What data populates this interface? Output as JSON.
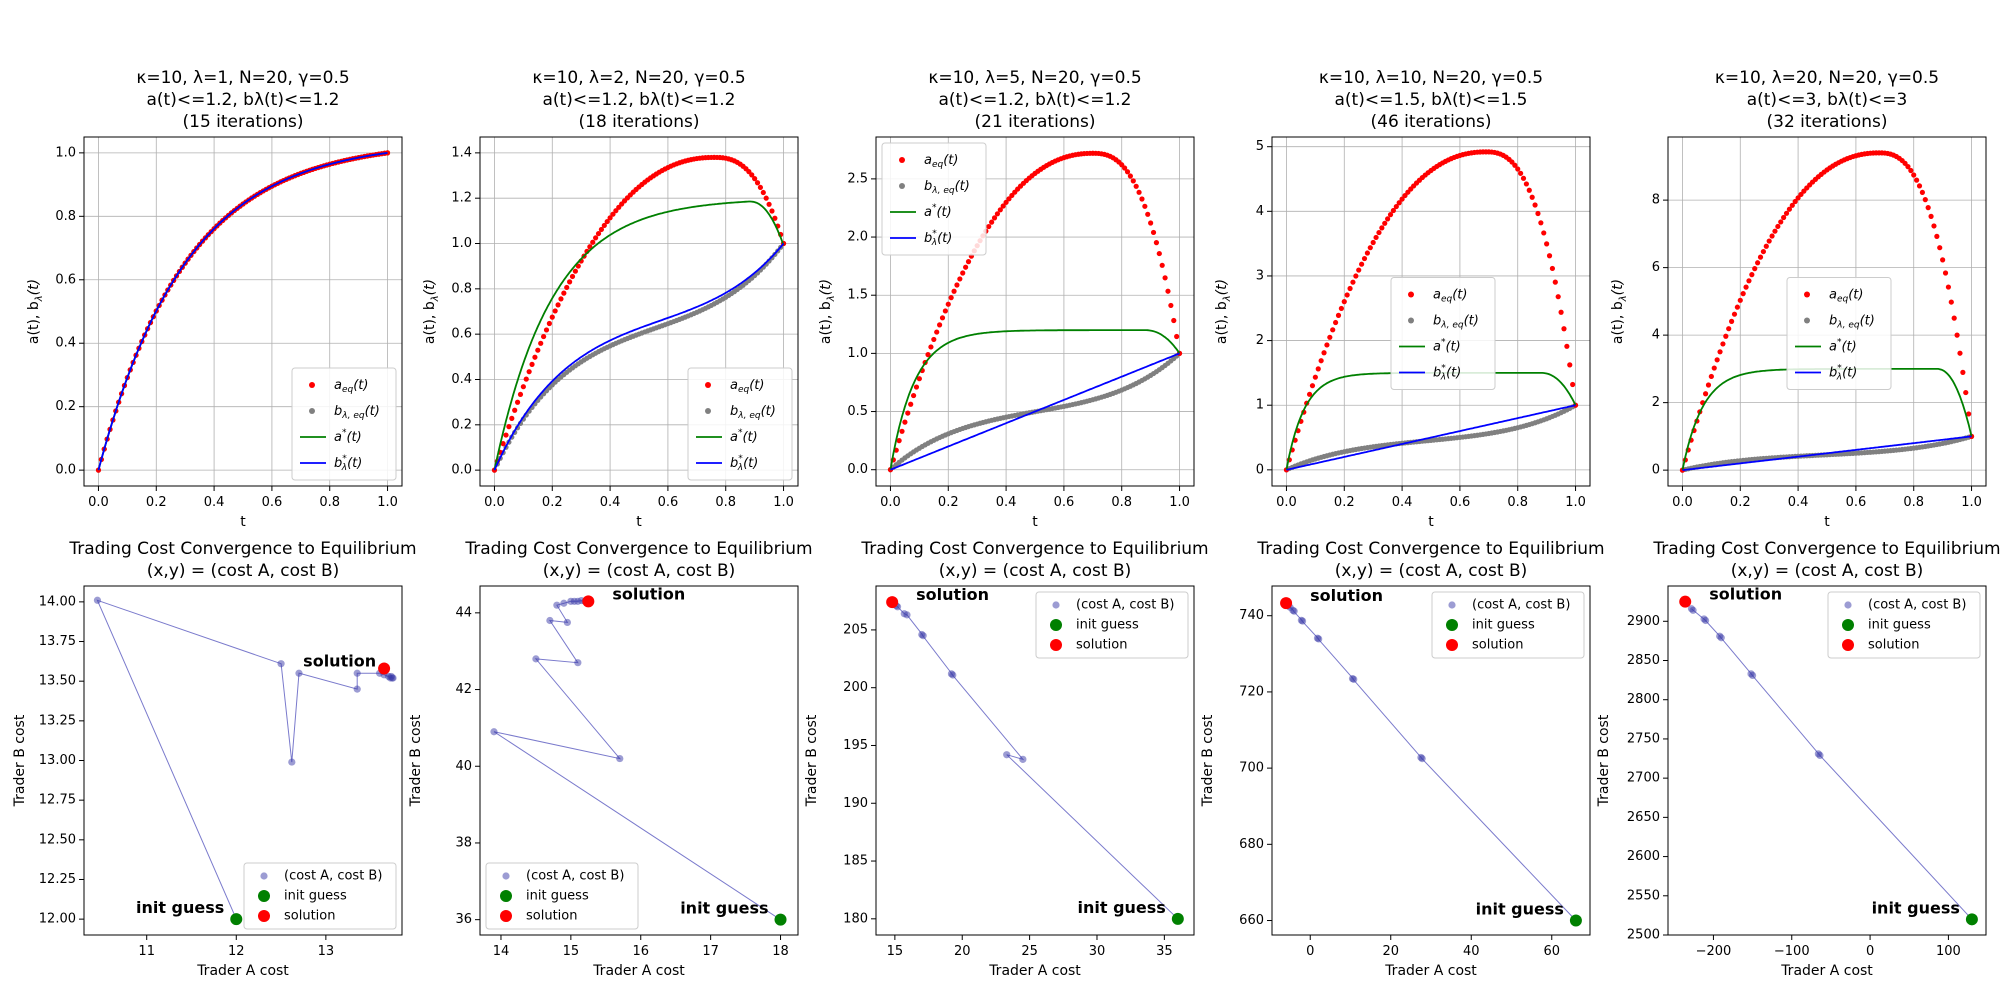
{
  "figure": {
    "width": 2000,
    "height": 1000
  },
  "colors": {
    "a_eq": "#ff0000",
    "b_eq": "#808080",
    "a_star": "#008000",
    "b_star": "#0000ff",
    "path": "#7a7acc",
    "init": "#008000",
    "solution": "#ff0000"
  },
  "chart_data": [
    {
      "type": "scatter",
      "panel": "top-1",
      "title": [
        "κ=10, λ=1, N=20, γ=0.5",
        "a(t)<=1.2, bλ(t)<=1.2",
        "(15 iterations)"
      ],
      "xlabel": "t",
      "ylabel": "a(t), bλ(t)",
      "xlim": [
        -0.05,
        1.05
      ],
      "ylim": [
        -0.05,
        1.05
      ],
      "xticks": [
        0,
        0.2,
        0.4,
        0.6,
        0.8,
        1.0
      ],
      "xtick_labels": [
        "0.0",
        "0.2",
        "0.4",
        "0.6",
        "0.8",
        "1.0"
      ],
      "yticks": [
        0,
        0.2,
        0.4,
        0.6,
        0.8,
        1.0
      ],
      "ytick_labels": [
        "0.0",
        "0.2",
        "0.4",
        "0.6",
        "0.8",
        "1.0"
      ],
      "grid": true,
      "legend_position": "lower-right",
      "legend": [
        "aeq(t)",
        "bλ,eq(t)",
        "a*(t)",
        "bλ*(t)"
      ],
      "curves": {
        "a_eq": {
          "shape": "exp",
          "k": 3.3
        },
        "b_eq": {
          "shape": "exp",
          "k": 3.3
        },
        "a_star": {
          "shape": "exp",
          "k": 3.3
        },
        "b_star": {
          "shape": "exp",
          "k": 3.3
        }
      }
    },
    {
      "type": "scatter",
      "panel": "top-2",
      "title": [
        "κ=10, λ=2, N=20, γ=0.5",
        "a(t)<=1.2, bλ(t)<=1.2",
        "(18 iterations)"
      ],
      "xlabel": "t",
      "ylabel": "a(t), bλ(t)",
      "xlim": [
        -0.05,
        1.05
      ],
      "ylim": [
        -0.07,
        1.47
      ],
      "xticks": [
        0,
        0.2,
        0.4,
        0.6,
        0.8,
        1.0
      ],
      "xtick_labels": [
        "0.0",
        "0.2",
        "0.4",
        "0.6",
        "0.8",
        "1.0"
      ],
      "yticks": [
        0,
        0.2,
        0.4,
        0.6,
        0.8,
        1.0,
        1.2,
        1.4
      ],
      "ytick_labels": [
        "0.0",
        "0.2",
        "0.4",
        "0.6",
        "0.8",
        "1.0",
        "1.2",
        "1.4"
      ],
      "grid": true,
      "legend_position": "lower-right",
      "legend": [
        "aeq(t)",
        "bλ,eq(t)",
        "a*(t)",
        "bλ*(t)"
      ],
      "curves": {
        "a_eq": {
          "shape": "hump",
          "peak": 1.38,
          "tpeak": 0.76
        },
        "b_eq": {
          "shape": "sshape",
          "mid": 0.67
        },
        "a_star": {
          "shape": "capped",
          "cap": 1.2,
          "k": 5.0
        },
        "b_star": {
          "shape": "sshape",
          "mid": 0.7
        }
      }
    },
    {
      "type": "scatter",
      "panel": "top-3",
      "title": [
        "κ=10, λ=5, N=20, γ=0.5",
        "a(t)<=1.2, bλ(t)<=1.2",
        "(21 iterations)"
      ],
      "xlabel": "t",
      "ylabel": "a(t), bλ(t)",
      "xlim": [
        -0.05,
        1.05
      ],
      "ylim": [
        -0.14,
        2.86
      ],
      "xticks": [
        0,
        0.2,
        0.4,
        0.6,
        0.8,
        1.0
      ],
      "xtick_labels": [
        "0.0",
        "0.2",
        "0.4",
        "0.6",
        "0.8",
        "1.0"
      ],
      "yticks": [
        0,
        0.5,
        1.0,
        1.5,
        2.0,
        2.5
      ],
      "ytick_labels": [
        "0.0",
        "0.5",
        "1.0",
        "1.5",
        "2.0",
        "2.5"
      ],
      "grid": true,
      "legend_position": "upper-left",
      "legend": [
        "aeq(t)",
        "bλ,eq(t)",
        "a*(t)",
        "bλ*(t)"
      ],
      "curves": {
        "a_eq": {
          "shape": "hump",
          "peak": 2.72,
          "tpeak": 0.7
        },
        "b_eq": {
          "shape": "sshape",
          "mid": 0.55
        },
        "a_star": {
          "shape": "capped",
          "cap": 1.2,
          "k": 12.0
        },
        "b_star": {
          "shape": "linear"
        }
      }
    },
    {
      "type": "scatter",
      "panel": "top-4",
      "title": [
        "κ=10, λ=10, N=20, γ=0.5",
        "a(t)<=1.5, bλ(t)<=1.5",
        "(46 iterations)"
      ],
      "xlabel": "t",
      "ylabel": "a(t), bλ(t)",
      "xlim": [
        -0.05,
        1.05
      ],
      "ylim": [
        -0.25,
        5.15
      ],
      "xticks": [
        0,
        0.2,
        0.4,
        0.6,
        0.8,
        1.0
      ],
      "xtick_labels": [
        "0.0",
        "0.2",
        "0.4",
        "0.6",
        "0.8",
        "1.0"
      ],
      "yticks": [
        0,
        1,
        2,
        3,
        4,
        5
      ],
      "ytick_labels": [
        "0",
        "1",
        "2",
        "3",
        "4",
        "5"
      ],
      "grid": true,
      "legend_position": "center",
      "legend": [
        "aeq(t)",
        "bλ,eq(t)",
        "a*(t)",
        "bλ*(t)"
      ],
      "curves": {
        "a_eq": {
          "shape": "hump",
          "peak": 4.92,
          "tpeak": 0.69
        },
        "b_eq": {
          "shape": "sshape",
          "mid": 0.5
        },
        "a_star": {
          "shape": "capped",
          "cap": 1.5,
          "k": 16.0
        },
        "b_star": {
          "shape": "linear"
        }
      }
    },
    {
      "type": "scatter",
      "panel": "top-5",
      "title": [
        "κ=10, λ=20, N=20, γ=0.5",
        "a(t)<=3, bλ(t)<=3",
        "(32 iterations)"
      ],
      "xlabel": "t",
      "ylabel": "a(t), bλ(t)",
      "xlim": [
        -0.05,
        1.05
      ],
      "ylim": [
        -0.47,
        9.87
      ],
      "xticks": [
        0,
        0.2,
        0.4,
        0.6,
        0.8,
        1.0
      ],
      "xtick_labels": [
        "0.0",
        "0.2",
        "0.4",
        "0.6",
        "0.8",
        "1.0"
      ],
      "yticks": [
        0,
        2,
        4,
        6,
        8
      ],
      "ytick_labels": [
        "0",
        "2",
        "4",
        "6",
        "8"
      ],
      "grid": true,
      "legend_position": "center",
      "legend": [
        "aeq(t)",
        "bλ,eq(t)",
        "a*(t)",
        "bλ*(t)"
      ],
      "curves": {
        "a_eq": {
          "shape": "hump",
          "peak": 9.4,
          "tpeak": 0.68
        },
        "b_eq": {
          "shape": "sshape",
          "mid": 0.5
        },
        "a_star": {
          "shape": "capped",
          "cap": 3.0,
          "k": 14.0
        },
        "b_star": {
          "shape": "linear"
        }
      }
    },
    {
      "type": "line",
      "panel": "bottom-1",
      "title": [
        "Trading Cost Convergence to Equilibrium",
        "(x,y) = (cost A, cost B)"
      ],
      "xlabel": "Trader A cost",
      "ylabel": "Trader B cost",
      "xlim": [
        10.3,
        13.85
      ],
      "ylim": [
        11.9,
        14.1
      ],
      "xticks": [
        11,
        12,
        13
      ],
      "xtick_labels": [
        "11",
        "12",
        "13"
      ],
      "yticks": [
        12.0,
        12.25,
        12.5,
        12.75,
        13.0,
        13.25,
        13.5,
        13.75,
        14.0
      ],
      "ytick_labels": [
        "12.00",
        "12.25",
        "12.50",
        "12.75",
        "13.00",
        "13.25",
        "13.50",
        "13.75",
        "14.00"
      ],
      "legend_position": "lower-right",
      "legend": [
        "(cost A, cost B)",
        "init guess",
        "solution"
      ],
      "annotations": {
        "init": "init guess",
        "solution": "solution"
      },
      "points": [
        [
          12.0,
          12.0
        ],
        [
          10.45,
          14.01
        ],
        [
          12.5,
          13.61
        ],
        [
          12.62,
          12.99
        ],
        [
          12.7,
          13.55
        ],
        [
          13.35,
          13.45
        ],
        [
          13.35,
          13.55
        ],
        [
          13.6,
          13.55
        ],
        [
          13.65,
          13.54
        ],
        [
          13.7,
          13.53
        ],
        [
          13.72,
          13.52
        ],
        [
          13.73,
          13.53
        ],
        [
          13.74,
          13.52
        ],
        [
          13.75,
          13.52
        ]
      ],
      "init": [
        12.0,
        12.0
      ],
      "solution": [
        13.65,
        13.58
      ]
    },
    {
      "type": "line",
      "panel": "bottom-2",
      "title": [
        "Trading Cost Convergence to Equilibrium",
        "(x,y) = (cost A, cost B)"
      ],
      "xlabel": "Trader A cost",
      "ylabel": "Trader B cost",
      "xlim": [
        13.7,
        18.25
      ],
      "ylim": [
        35.6,
        44.7
      ],
      "xticks": [
        14,
        15,
        16,
        17,
        18
      ],
      "xtick_labels": [
        "14",
        "15",
        "16",
        "17",
        "18"
      ],
      "yticks": [
        36,
        38,
        40,
        42,
        44
      ],
      "ytick_labels": [
        "36",
        "38",
        "40",
        "42",
        "44"
      ],
      "legend_position": "lower-left",
      "legend": [
        "(cost A, cost B)",
        "init guess",
        "solution"
      ],
      "annotations": {
        "init": "init guess",
        "solution": "solution"
      },
      "points": [
        [
          18.0,
          36.0
        ],
        [
          13.9,
          40.9
        ],
        [
          15.7,
          40.2
        ],
        [
          14.5,
          42.8
        ],
        [
          15.1,
          42.7
        ],
        [
          14.7,
          43.8
        ],
        [
          14.95,
          43.75
        ],
        [
          14.8,
          44.2
        ],
        [
          14.9,
          44.25
        ],
        [
          15.0,
          44.3
        ],
        [
          15.05,
          44.3
        ],
        [
          15.1,
          44.3
        ],
        [
          15.15,
          44.32
        ],
        [
          15.2,
          44.3
        ],
        [
          15.25,
          44.32
        ]
      ],
      "init": [
        18.0,
        36.0
      ],
      "solution": [
        15.25,
        44.3
      ]
    },
    {
      "type": "line",
      "panel": "bottom-3",
      "title": [
        "Trading Cost Convergence to Equilibrium",
        "(x,y) = (cost A, cost B)"
      ],
      "xlabel": "Trader A cost",
      "ylabel": "Trader B cost",
      "xlim": [
        13.6,
        37.2
      ],
      "ylim": [
        178.6,
        208.8
      ],
      "xticks": [
        15,
        20,
        25,
        30,
        35
      ],
      "xtick_labels": [
        "15",
        "20",
        "25",
        "30",
        "35"
      ],
      "yticks": [
        180,
        185,
        190,
        195,
        200,
        205
      ],
      "ytick_labels": [
        "180",
        "185",
        "190",
        "195",
        "200",
        "205"
      ],
      "legend_position": "upper-right",
      "legend": [
        "(cost A, cost B)",
        "init guess",
        "solution"
      ],
      "annotations": {
        "init": "init guess",
        "solution": "solution"
      },
      "points": [
        [
          36.0,
          180.0
        ],
        [
          23.3,
          194.2
        ],
        [
          24.5,
          193.8
        ],
        [
          19.2,
          201.2
        ],
        [
          19.3,
          201.1
        ],
        [
          17.0,
          204.6
        ],
        [
          17.1,
          204.5
        ],
        [
          15.9,
          206.3
        ],
        [
          15.7,
          206.4
        ],
        [
          15.2,
          207.0
        ],
        [
          15.1,
          207.1
        ],
        [
          14.9,
          207.3
        ]
      ],
      "init": [
        36.0,
        180.0
      ],
      "solution": [
        14.8,
        207.4
      ]
    },
    {
      "type": "line",
      "panel": "bottom-4",
      "title": [
        "Trading Cost Convergence to Equilibrium",
        "(x,y) = (cost A, cost B)"
      ],
      "xlabel": "Trader A cost",
      "ylabel": "Trader B cost",
      "xlim": [
        -9.5,
        69.5
      ],
      "ylim": [
        656.2,
        747.8
      ],
      "xticks": [
        0,
        20,
        40,
        60
      ],
      "xtick_labels": [
        "0",
        "20",
        "40",
        "60"
      ],
      "yticks": [
        660,
        680,
        700,
        720,
        740
      ],
      "ytick_labels": [
        "660",
        "680",
        "700",
        "720",
        "740"
      ],
      "legend_position": "upper-right",
      "legend": [
        "(cost A, cost B)",
        "init guess",
        "solution"
      ],
      "annotations": {
        "init": "init guess",
        "solution": "solution"
      },
      "points": [
        [
          66.0,
          660.0
        ],
        [
          27.5,
          702.8
        ],
        [
          27.8,
          702.5
        ],
        [
          10.5,
          723.5
        ],
        [
          10.8,
          723.3
        ],
        [
          1.8,
          734.1
        ],
        [
          2.1,
          733.9
        ],
        [
          -2.2,
          738.8
        ],
        [
          -1.9,
          738.6
        ],
        [
          -4.3,
          741.4
        ],
        [
          -4.0,
          741.2
        ],
        [
          -5.0,
          742.2
        ],
        [
          -5.5,
          742.6
        ]
      ],
      "init": [
        66.0,
        660.0
      ],
      "solution": [
        -6.0,
        743.3
      ]
    },
    {
      "type": "line",
      "panel": "bottom-5",
      "title": [
        "Trading Cost Convergence to Equilibrium",
        "(x,y) = (cost A, cost B)"
      ],
      "xlabel": "Trader A cost",
      "ylabel": "Trader B cost",
      "xlim": [
        -258,
        148
      ],
      "ylim": [
        2500,
        2945
      ],
      "xticks": [
        -200,
        -100,
        0,
        100
      ],
      "xtick_labels": [
        "−200",
        "−100",
        "0",
        "100"
      ],
      "yticks": [
        2500,
        2550,
        2600,
        2650,
        2700,
        2750,
        2800,
        2850,
        2900
      ],
      "ytick_labels": [
        "2500",
        "2550",
        "2600",
        "2650",
        "2700",
        "2750",
        "2800",
        "2850",
        "2900"
      ],
      "legend_position": "upper-right",
      "legend": [
        "(cost A, cost B)",
        "init guess",
        "solution"
      ],
      "annotations": {
        "init": "init guess",
        "solution": "solution"
      },
      "points": [
        [
          130.0,
          2520.0
        ],
        [
          -66.0,
          2731.0
        ],
        [
          -64.0,
          2729.0
        ],
        [
          -152.0,
          2833.0
        ],
        [
          -150.0,
          2831.0
        ],
        [
          -192.0,
          2881.0
        ],
        [
          -190.0,
          2879.0
        ],
        [
          -212.0,
          2903.0
        ],
        [
          -210.0,
          2901.0
        ],
        [
          -228.0,
          2916.0
        ],
        [
          -226.0,
          2914.0
        ]
      ],
      "init": [
        130.0,
        2520.0
      ],
      "solution": [
        -236.0,
        2925.0
      ]
    }
  ]
}
